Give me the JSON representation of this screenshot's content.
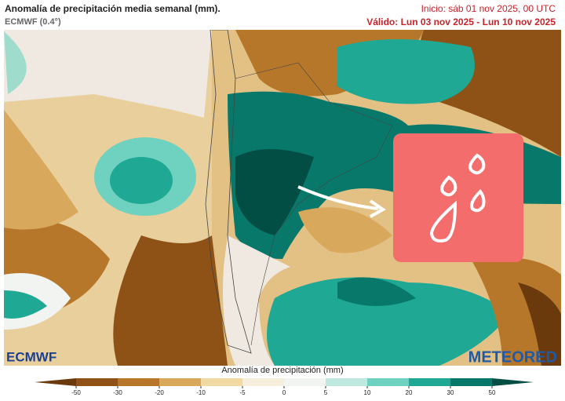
{
  "header": {
    "title": "Anomalía de precipitación media semanal (mm).",
    "model": "ECMWF (0.4°)",
    "init": "Inicio:  sáb 01 nov 2025, 00 UTC",
    "valid": "Válido: Lun 03 nov 2025 - Lun 10 nov 2025"
  },
  "colorbar": {
    "label": "Anomalía de precipitación (mm)",
    "ticks": [
      -50,
      -30,
      -20,
      -10,
      -5,
      0,
      5,
      10,
      20,
      30,
      50
    ],
    "colors": [
      "#6b3a0c",
      "#8e5116",
      "#b7772b",
      "#d8a85c",
      "#f0d9a2",
      "#f6eedd",
      "#f2f4f2",
      "#bfe9df",
      "#6fd1bf",
      "#1fa894",
      "#08786a",
      "#034e44"
    ]
  },
  "logos": {
    "left": "ECMWF",
    "right": "METEORED"
  }
}
